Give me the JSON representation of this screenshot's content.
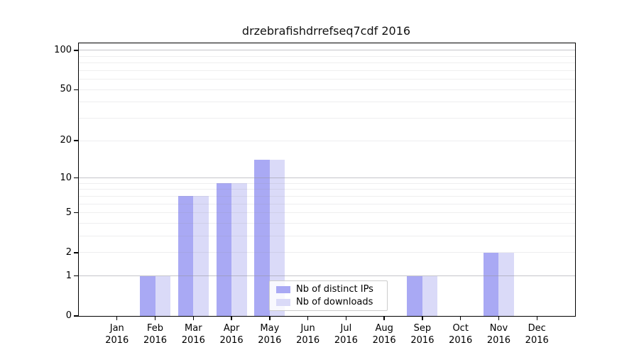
{
  "title": "drzebrafishdrrefseq7cdf 2016",
  "chart_data": {
    "type": "bar",
    "title": "drzebrafishdrrefseq7cdf 2016",
    "categories": [
      "Jan",
      "Feb",
      "Mar",
      "Apr",
      "May",
      "Jun",
      "Jul",
      "Aug",
      "Sep",
      "Oct",
      "Nov",
      "Dec"
    ],
    "category_year": "2016",
    "series": [
      {
        "name": "Nb of distinct IPs",
        "color": "#a9a9f4",
        "values": [
          0,
          1,
          7,
          9,
          14,
          0,
          0,
          0,
          1,
          0,
          2,
          0
        ]
      },
      {
        "name": "Nb of downloads",
        "color": "#dadaf8",
        "values": [
          0,
          1,
          7,
          9,
          14,
          0,
          0,
          0,
          1,
          0,
          2,
          0
        ]
      }
    ],
    "xlabel": "",
    "ylabel": "",
    "y_scale": "log1p",
    "ylim": [
      0,
      113
    ],
    "y_ticks": [
      0,
      1,
      2,
      5,
      10,
      20,
      50,
      100
    ],
    "y_major_gridlines": [
      1,
      10,
      100
    ],
    "y_minor_gridlines": [
      2,
      3,
      4,
      5,
      6,
      7,
      8,
      9,
      20,
      30,
      40,
      50,
      60,
      70,
      80,
      90
    ],
    "grid": "horizontal",
    "legend_position": "lower-center",
    "legend_entries": [
      "Nb of distinct IPs",
      "Nb of downloads"
    ],
    "bar_colors": {
      "distinct_ips": "#a9a9f4",
      "downloads": "#dadaf8"
    }
  }
}
